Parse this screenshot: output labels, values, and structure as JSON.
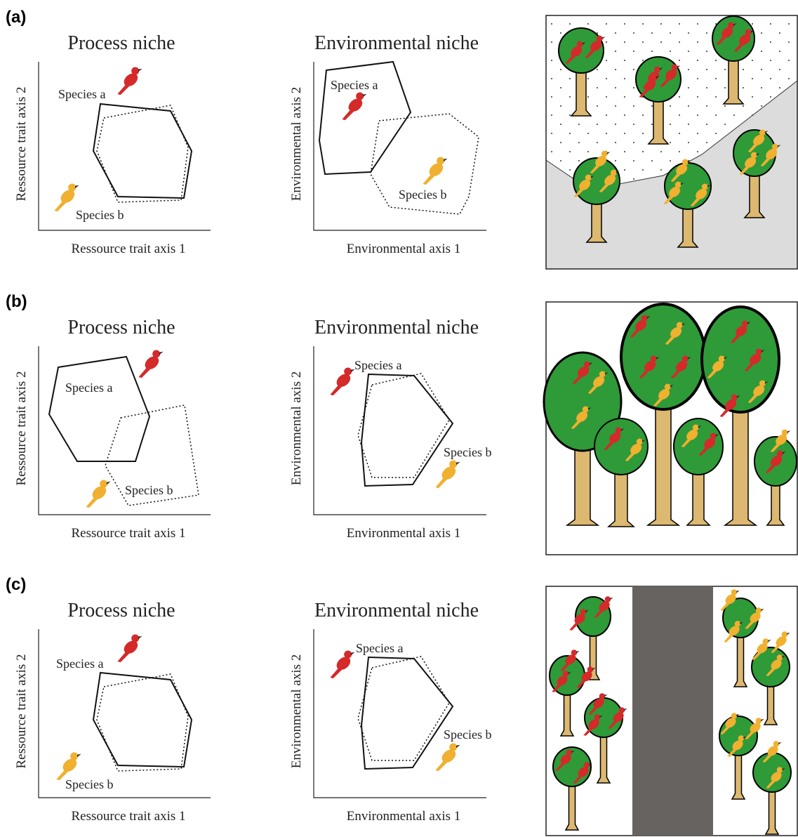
{
  "panels": [
    {
      "label": "(a)",
      "process": {
        "title": "Process niche",
        "x_axis": "Ressource trait axis 1",
        "y_axis": "Ressource trait axis 2",
        "species_a": "Species a",
        "species_b": "Species b"
      },
      "environmental": {
        "title": "Environmental niche",
        "x_axis": "Environmental axis 1",
        "y_axis": "Environmental axis 2",
        "species_a": "Species a",
        "species_b": "Species b"
      }
    },
    {
      "label": "(b)",
      "process": {
        "title": "Process niche",
        "x_axis": "Ressource trait axis 1",
        "y_axis": "Ressource trait axis 2",
        "species_a": "Species a",
        "species_b": "Species b"
      },
      "environmental": {
        "title": "Environmental niche",
        "x_axis": "Environmental axis 1",
        "y_axis": "Environmental axis 2",
        "species_a": "Species a",
        "species_b": "Species b"
      }
    },
    {
      "label": "(c)",
      "process": {
        "title": "Process niche",
        "x_axis": "Ressource trait axis 1",
        "y_axis": "Ressource trait axis 2",
        "species_a": "Species a",
        "species_b": "Species b"
      },
      "environmental": {
        "title": "Environmental niche",
        "x_axis": "Environmental axis 1",
        "y_axis": "Environmental axis 2",
        "species_a": "Species a",
        "species_b": "Species b"
      }
    }
  ]
}
